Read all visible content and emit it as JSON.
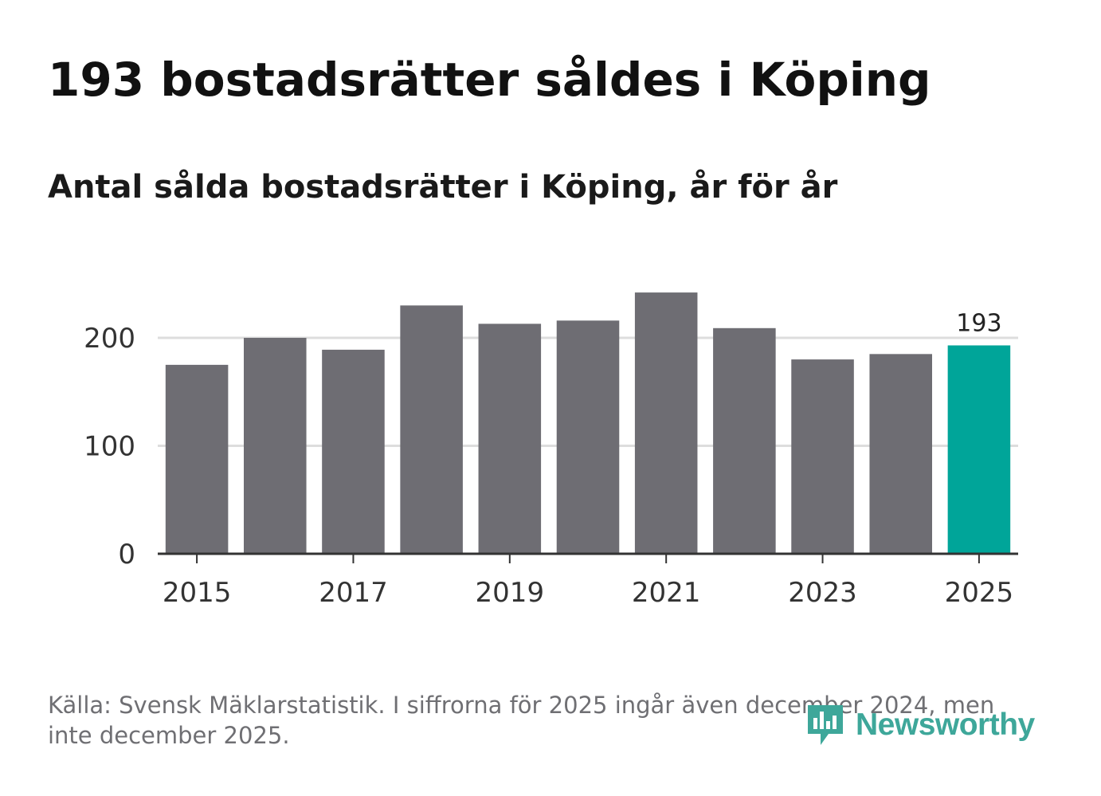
{
  "header": {
    "title": "193 bostadsrätter såldes i Köping",
    "subtitle": "Antal sålda bostadsrätter i Köping, år för år"
  },
  "footer": {
    "source": "Källa: Svensk Mäklarstatistik. I siffrorna för 2025 ingår även december 2024, men inte december 2025.",
    "logo": "Newsworthy"
  },
  "colors": {
    "bar": "#6e6d73",
    "highlight": "#00a599",
    "grid": "#dddddd",
    "axis": "#333333",
    "brand": "#3ea79a"
  },
  "chart_data": {
    "type": "bar",
    "title": "Antal sålda bostadsrätter i Köping, år för år",
    "xlabel": "",
    "ylabel": "",
    "categories": [
      "2015",
      "2016",
      "2017",
      "2018",
      "2019",
      "2020",
      "2021",
      "2022",
      "2023",
      "2024",
      "2025"
    ],
    "values": [
      175,
      200,
      189,
      230,
      213,
      216,
      242,
      209,
      180,
      185,
      193
    ],
    "highlight_index": 10,
    "data_labels": [
      {
        "index": 10,
        "text": "193"
      }
    ],
    "ylim": [
      0,
      260
    ],
    "yticks": [
      0,
      100,
      200
    ],
    "ytick_labels": [
      "0",
      "100",
      "200"
    ],
    "xtick_labels": [
      "2015",
      "2017",
      "2019",
      "2021",
      "2023",
      "2025"
    ],
    "grid": true
  }
}
